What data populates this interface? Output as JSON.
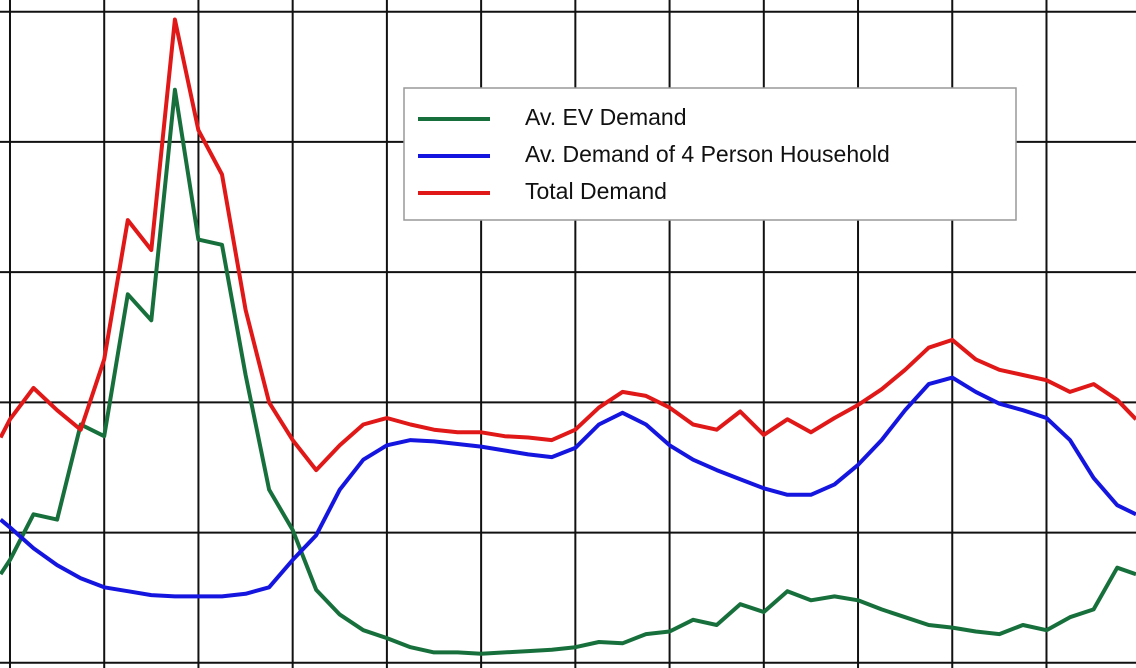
{
  "chart_data": {
    "type": "line",
    "x": [
      -0.1,
      0,
      0.25,
      0.5,
      0.75,
      1,
      1.25,
      1.5,
      1.75,
      2,
      2.25,
      2.5,
      2.75,
      3,
      3.25,
      3.5,
      3.75,
      4,
      4.25,
      4.5,
      4.75,
      5,
      5.25,
      5.5,
      5.75,
      6,
      6.25,
      6.5,
      6.75,
      7,
      7.25,
      7.5,
      7.75,
      8,
      8.25,
      8.5,
      8.75,
      9,
      9.25,
      9.5,
      9.75,
      10,
      10.25,
      10.5,
      10.75,
      11,
      11.25,
      11.5,
      11.75,
      11.95
    ],
    "series": [
      {
        "name": "Av. EV Demand",
        "color": "#17703c",
        "values": [
          0.68,
          0.79,
          1.14,
          1.1,
          1.83,
          1.74,
          2.83,
          2.63,
          4.4,
          3.25,
          3.21,
          2.21,
          1.33,
          1.02,
          0.56,
          0.37,
          0.25,
          0.19,
          0.12,
          0.08,
          0.08,
          0.07,
          0.08,
          0.09,
          0.1,
          0.12,
          0.16,
          0.15,
          0.22,
          0.24,
          0.33,
          0.29,
          0.45,
          0.39,
          0.55,
          0.48,
          0.51,
          0.48,
          0.41,
          0.35,
          0.29,
          0.27,
          0.24,
          0.22,
          0.29,
          0.25,
          0.35,
          0.41,
          0.73,
          0.68
        ]
      },
      {
        "name": "Av. Demand of 4 Person Household",
        "color": "#1515e0",
        "values": [
          1.1,
          1.04,
          0.88,
          0.75,
          0.65,
          0.58,
          0.55,
          0.52,
          0.51,
          0.51,
          0.51,
          0.53,
          0.58,
          0.79,
          0.98,
          1.33,
          1.56,
          1.67,
          1.71,
          1.7,
          1.68,
          1.66,
          1.63,
          1.6,
          1.58,
          1.65,
          1.83,
          1.92,
          1.83,
          1.67,
          1.56,
          1.48,
          1.41,
          1.34,
          1.29,
          1.29,
          1.37,
          1.52,
          1.71,
          1.94,
          2.14,
          2.19,
          2.08,
          1.99,
          1.94,
          1.88,
          1.71,
          1.42,
          1.21,
          1.14
        ]
      },
      {
        "name": "Total Demand",
        "color": "#e01818",
        "values": [
          1.73,
          1.87,
          2.11,
          1.94,
          1.79,
          2.33,
          3.4,
          3.17,
          4.94,
          4.09,
          3.75,
          2.71,
          2.0,
          1.71,
          1.48,
          1.67,
          1.83,
          1.88,
          1.83,
          1.79,
          1.77,
          1.77,
          1.74,
          1.73,
          1.71,
          1.79,
          1.96,
          2.08,
          2.05,
          1.96,
          1.83,
          1.79,
          1.93,
          1.75,
          1.87,
          1.77,
          1.88,
          1.98,
          2.1,
          2.25,
          2.42,
          2.48,
          2.33,
          2.25,
          2.21,
          2.17,
          2.08,
          2.14,
          2.02,
          1.87
        ]
      }
    ],
    "xlim": [
      -0.106,
      11.95
    ],
    "ylim": [
      -0.04,
      5.09
    ],
    "xgrid": [
      0,
      1,
      2,
      3,
      4,
      5,
      6,
      7,
      8,
      9,
      10,
      11
    ],
    "ygrid": [
      0,
      1,
      2,
      3,
      4,
      5
    ],
    "grid": true,
    "legend": "upper center"
  }
}
